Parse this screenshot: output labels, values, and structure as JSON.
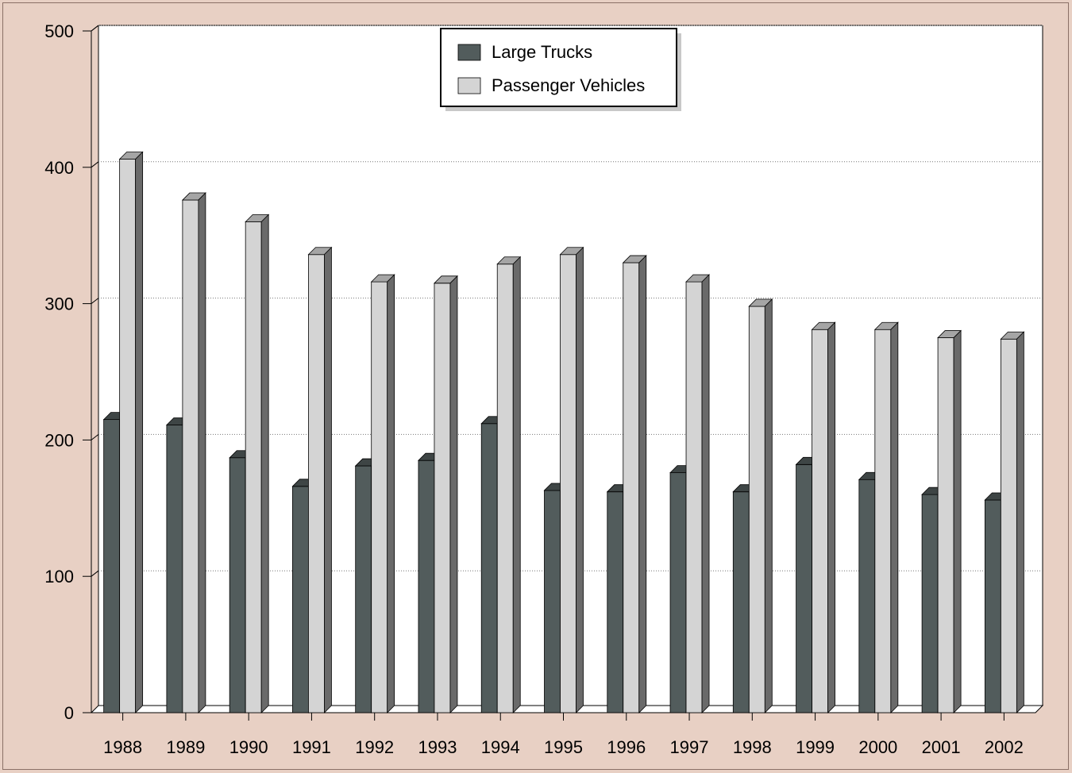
{
  "chart_data": {
    "type": "bar",
    "title": "",
    "xlabel": "",
    "ylabel": "",
    "ylim": [
      0,
      500
    ],
    "yticks": [
      0,
      100,
      200,
      300,
      400,
      500
    ],
    "grid": true,
    "legend_position": "top-center",
    "categories": [
      "1988",
      "1989",
      "1990",
      "1991",
      "1992",
      "1993",
      "1994",
      "1995",
      "1996",
      "1997",
      "1998",
      "1999",
      "2000",
      "2001",
      "2002"
    ],
    "series": [
      {
        "name": "Large Trucks",
        "color": "#525c5c",
        "values": [
          215,
          211,
          187,
          166,
          181,
          185,
          212,
          163,
          162,
          176,
          162,
          182,
          171,
          160,
          156
        ]
      },
      {
        "name": "Passenger Vehicles",
        "color": "#d4d4d4",
        "values": [
          406,
          376,
          360,
          336,
          316,
          315,
          329,
          336,
          330,
          316,
          298,
          281,
          281,
          275,
          274
        ]
      }
    ]
  }
}
